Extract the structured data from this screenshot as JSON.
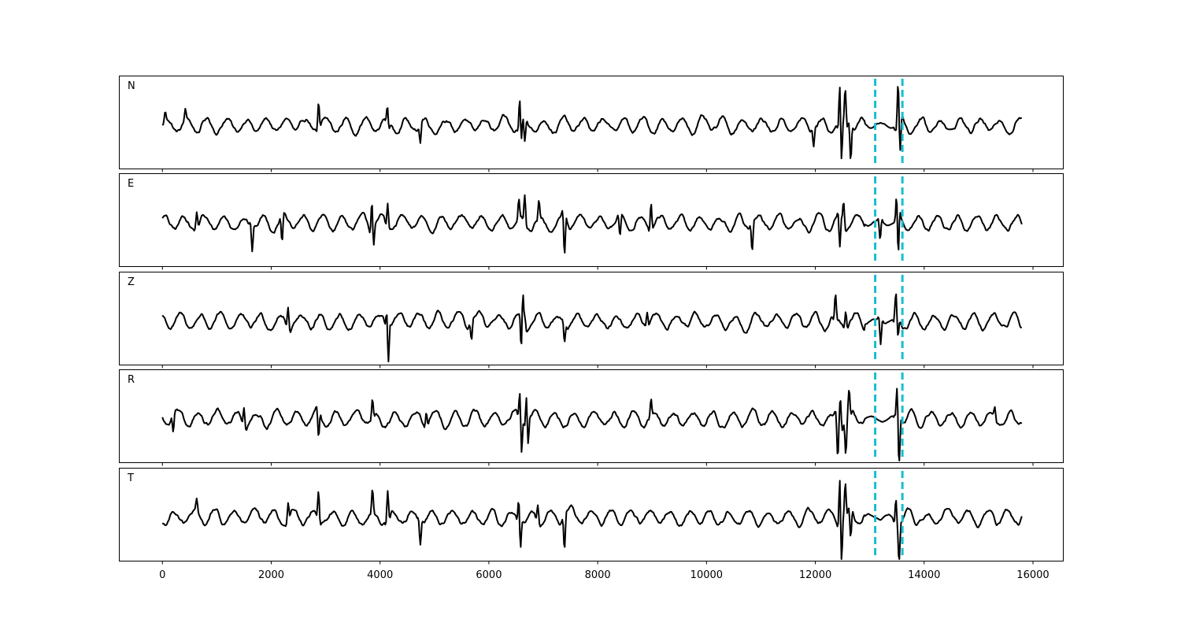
{
  "chart_data": {
    "type": "line",
    "title": "",
    "xlabel": "",
    "ylabel": "",
    "xlim": [
      -800,
      16550
    ],
    "x_ticks": [
      0,
      2000,
      4000,
      6000,
      8000,
      10000,
      12000,
      14000,
      16000
    ],
    "x_tick_labels": [
      "0",
      "2000",
      "4000",
      "6000",
      "8000",
      "10000",
      "12000",
      "14000",
      "16000"
    ],
    "grid": false,
    "line_color": "#000000",
    "marker_color": "#17becf",
    "vertical_markers": [
      13100,
      13600
    ],
    "sample_count": 15800,
    "panels": [
      {
        "label": "N",
        "ylim": [
          -1,
          1
        ],
        "features": [
          [
            50,
            0.2
          ],
          [
            420,
            0.25
          ],
          [
            2870,
            0.6
          ],
          [
            4140,
            0.55
          ],
          [
            4150,
            -0.3
          ],
          [
            4740,
            -0.4
          ],
          [
            6570,
            0.7
          ],
          [
            6590,
            -0.5
          ],
          [
            6660,
            -0.45
          ],
          [
            11970,
            -0.4
          ],
          [
            12450,
            0.8
          ],
          [
            12480,
            -0.85
          ],
          [
            12550,
            0.8
          ],
          [
            12650,
            -0.7
          ],
          [
            13520,
            0.9
          ],
          [
            13560,
            -0.6
          ]
        ]
      },
      {
        "label": "E",
        "ylim": [
          -1,
          1
        ],
        "features": [
          [
            630,
            0.35
          ],
          [
            1650,
            -0.55
          ],
          [
            2200,
            -0.55
          ],
          [
            3850,
            0.7
          ],
          [
            3880,
            -0.3
          ],
          [
            4140,
            0.55
          ],
          [
            6550,
            0.45
          ],
          [
            6660,
            0.6
          ],
          [
            6920,
            0.4
          ],
          [
            7390,
            -0.85
          ],
          [
            8410,
            -0.45
          ],
          [
            8980,
            0.6
          ],
          [
            10840,
            -0.55
          ],
          [
            12450,
            -0.75
          ],
          [
            12520,
            0.5
          ],
          [
            13190,
            -0.45
          ],
          [
            13500,
            0.55
          ],
          [
            13520,
            -1.0
          ]
        ]
      },
      {
        "label": "Z",
        "ylim": [
          -1,
          1
        ],
        "features": [
          [
            2310,
            0.45
          ],
          [
            4130,
            0.4
          ],
          [
            4150,
            -0.9
          ],
          [
            5680,
            -0.4
          ],
          [
            6620,
            0.9
          ],
          [
            6600,
            -0.8
          ],
          [
            6660,
            0.35
          ],
          [
            7390,
            -0.4
          ],
          [
            8910,
            0.3
          ],
          [
            12370,
            0.5
          ],
          [
            12560,
            0.4
          ],
          [
            13200,
            -0.55
          ],
          [
            13480,
            0.5
          ],
          [
            13520,
            -0.35
          ]
        ]
      },
      {
        "label": "R",
        "ylim": [
          -1,
          1
        ],
        "features": [
          [
            200,
            -0.35
          ],
          [
            1500,
            0.4
          ],
          [
            2870,
            -0.55
          ],
          [
            3860,
            0.45
          ],
          [
            4850,
            0.35
          ],
          [
            6570,
            0.55
          ],
          [
            6600,
            -0.75
          ],
          [
            6690,
            0.6
          ],
          [
            6720,
            -0.5
          ],
          [
            8980,
            0.35
          ],
          [
            12410,
            -0.85
          ],
          [
            12460,
            0.6
          ],
          [
            12560,
            -0.75
          ],
          [
            12620,
            0.55
          ],
          [
            13500,
            0.55
          ],
          [
            13540,
            -1.0
          ],
          [
            15300,
            0.25
          ]
        ]
      },
      {
        "label": "T",
        "ylim": [
          -1,
          1
        ],
        "features": [
          [
            630,
            0.25
          ],
          [
            2310,
            0.4
          ],
          [
            2870,
            0.6
          ],
          [
            3860,
            0.5
          ],
          [
            4140,
            0.65
          ],
          [
            4740,
            -0.5
          ],
          [
            6550,
            0.45
          ],
          [
            6580,
            -0.55
          ],
          [
            6900,
            0.4
          ],
          [
            7390,
            -0.7
          ],
          [
            12450,
            0.95
          ],
          [
            12480,
            -0.9
          ],
          [
            12550,
            0.7
          ],
          [
            12650,
            -0.6
          ],
          [
            13480,
            0.65
          ],
          [
            13540,
            -0.75
          ]
        ]
      }
    ]
  }
}
